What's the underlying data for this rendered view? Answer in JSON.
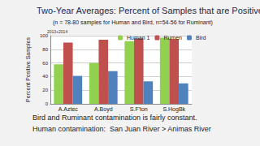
{
  "chart_data": {
    "type": "bar",
    "title": "Two-Year Averages: Percent of Samples that are Positive",
    "subtitle": "(n = 78-80 samples for Human and Bird, n=54-56 for Ruminant)",
    "y_label": "Percent Positive Samples",
    "annotations": [
      "2013+2014",
      "Bird and Ruminant contamination is fairly constant.",
      "Human contamination:  San Juan River > Animas River"
    ],
    "categories": [
      "A.Aztec",
      "A.Boyd",
      "S.F'ton",
      "S.HogBk"
    ],
    "series": [
      {
        "name": "Human 1",
        "color": "#92d050",
        "values": [
          58,
          60,
          92,
          97
        ]
      },
      {
        "name": "Rumen",
        "color": "#c0504d",
        "values": [
          90,
          94,
          96,
          95
        ]
      },
      {
        "name": "Bird",
        "color": "#4f81bd",
        "values": [
          41,
          48,
          33,
          30
        ]
      }
    ],
    "ylim": [
      0,
      100
    ],
    "yticks": [
      0,
      20,
      40,
      60,
      80,
      100
    ],
    "grid": true,
    "legend": "top"
  }
}
